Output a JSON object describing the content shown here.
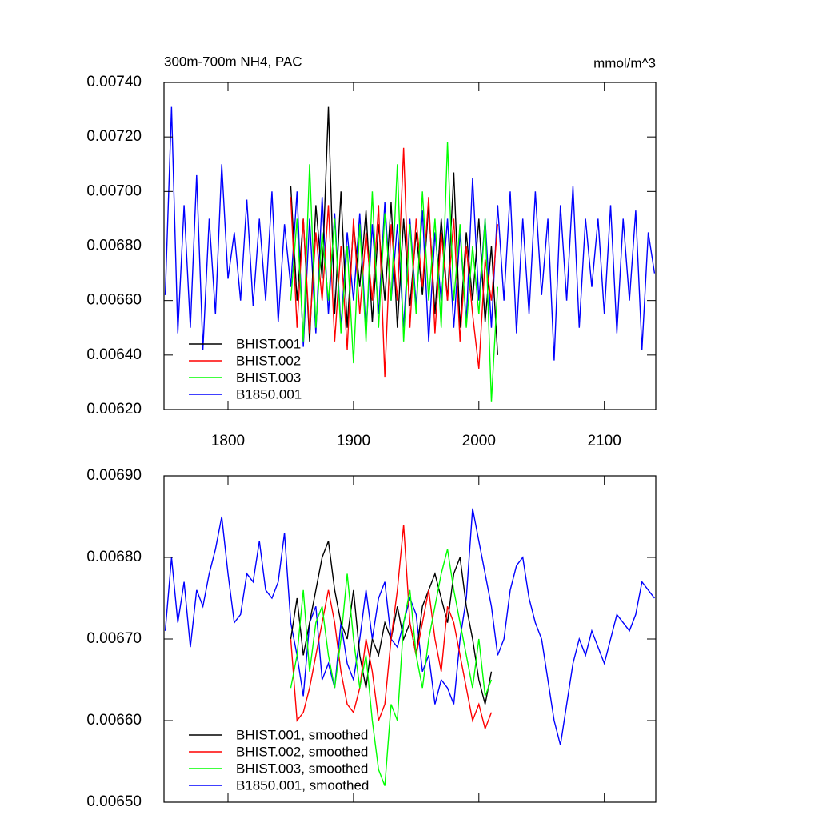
{
  "chart_data": [
    {
      "type": "line",
      "title": "300m-700m NH4, PAC",
      "units_label": "mmol/m^3",
      "xlim": [
        1749,
        2141
      ],
      "xticks": [
        1800,
        1900,
        2000,
        2100
      ],
      "ylim": [
        0.0062,
        0.0074
      ],
      "yticks": [
        {
          "value": 0.0062,
          "label": "0.00620"
        },
        {
          "value": 0.0064,
          "label": "0.00640"
        },
        {
          "value": 0.0066,
          "label": "0.00660"
        },
        {
          "value": 0.0068,
          "label": "0.00680"
        },
        {
          "value": 0.007,
          "label": "0.00700"
        },
        {
          "value": 0.0072,
          "label": "0.00720"
        },
        {
          "value": 0.0074,
          "label": "0.00740"
        }
      ],
      "legend": "lower left",
      "series": [
        {
          "name": "B1850.001",
          "color": "#0000ff",
          "x": [
            1750,
            1755,
            1760,
            1765,
            1770,
            1775,
            1780,
            1785,
            1790,
            1795,
            1800,
            1805,
            1810,
            1815,
            1820,
            1825,
            1830,
            1835,
            1840,
            1845,
            1850,
            1855,
            1860,
            1865,
            1870,
            1875,
            1880,
            1885,
            1890,
            1895,
            1900,
            1905,
            1910,
            1915,
            1920,
            1925,
            1930,
            1935,
            1940,
            1945,
            1950,
            1955,
            1960,
            1965,
            1970,
            1975,
            1980,
            1985,
            1990,
            1995,
            2000,
            2005,
            2010,
            2015,
            2020,
            2025,
            2030,
            2035,
            2040,
            2045,
            2050,
            2055,
            2060,
            2065,
            2070,
            2075,
            2080,
            2085,
            2090,
            2095,
            2100,
            2105,
            2110,
            2115,
            2120,
            2125,
            2130,
            2135,
            2140
          ],
          "values": [
            0.00662,
            0.00731,
            0.00648,
            0.00695,
            0.0065,
            0.00706,
            0.00642,
            0.0069,
            0.00655,
            0.0071,
            0.00668,
            0.00685,
            0.0066,
            0.00697,
            0.00658,
            0.0069,
            0.0066,
            0.007,
            0.00652,
            0.00688,
            0.00665,
            0.007,
            0.00643,
            0.0069,
            0.00648,
            0.00698,
            0.00655,
            0.00692,
            0.0065,
            0.00685,
            0.0066,
            0.00692,
            0.00648,
            0.00688,
            0.00655,
            0.00696,
            0.0066,
            0.00688,
            0.0065,
            0.0069,
            0.00658,
            0.00693,
            0.00645,
            0.00685,
            0.0066,
            0.0069,
            0.0065,
            0.00685,
            0.00652,
            0.00705,
            0.0066,
            0.0069,
            0.0065,
            0.00695,
            0.0066,
            0.007,
            0.00648,
            0.0069,
            0.00655,
            0.007,
            0.00662,
            0.0069,
            0.00638,
            0.00695,
            0.0066,
            0.00702,
            0.0065,
            0.0069,
            0.00665,
            0.0069,
            0.00655,
            0.00695,
            0.00648,
            0.0069,
            0.0066,
            0.00693,
            0.00642,
            0.00685,
            0.0067
          ]
        },
        {
          "name": "BHIST.001",
          "color": "#000000",
          "x": [
            1850,
            1855,
            1860,
            1865,
            1870,
            1875,
            1880,
            1885,
            1890,
            1895,
            1900,
            1905,
            1910,
            1915,
            1920,
            1925,
            1930,
            1935,
            1940,
            1945,
            1950,
            1955,
            1960,
            1965,
            1970,
            1975,
            1980,
            1985,
            1990,
            1995,
            2000,
            2005,
            2010,
            2015
          ],
          "values": [
            0.00702,
            0.0066,
            0.0069,
            0.00645,
            0.00695,
            0.00668,
            0.00731,
            0.00655,
            0.007,
            0.0065,
            0.00688,
            0.00665,
            0.00693,
            0.00652,
            0.00688,
            0.0066,
            0.00696,
            0.0065,
            0.0069,
            0.00658,
            0.00685,
            0.00662,
            0.00695,
            0.00655,
            0.0069,
            0.0066,
            0.00707,
            0.0065,
            0.00685,
            0.0066,
            0.0069,
            0.00652,
            0.0068,
            0.0064
          ]
        },
        {
          "name": "BHIST.002",
          "color": "#ff0000",
          "x": [
            1850,
            1855,
            1860,
            1865,
            1870,
            1875,
            1880,
            1885,
            1890,
            1895,
            1900,
            1905,
            1910,
            1915,
            1920,
            1925,
            1930,
            1935,
            1940,
            1945,
            1950,
            1955,
            1960,
            1965,
            1970,
            1975,
            1980,
            1985,
            1990,
            1995,
            2000,
            2005,
            2010,
            2015
          ],
          "values": [
            0.00698,
            0.0065,
            0.0069,
            0.00648,
            0.00685,
            0.0066,
            0.00695,
            0.00645,
            0.0068,
            0.00642,
            0.0069,
            0.00655,
            0.00685,
            0.0066,
            0.00695,
            0.00632,
            0.00688,
            0.0066,
            0.00716,
            0.0065,
            0.0069,
            0.00665,
            0.00698,
            0.00648,
            0.00685,
            0.0066,
            0.0069,
            0.00645,
            0.0068,
            0.00655,
            0.00635,
            0.00675,
            0.0066,
            0.00688
          ]
        },
        {
          "name": "BHIST.003",
          "color": "#00ff00",
          "x": [
            1850,
            1855,
            1860,
            1865,
            1870,
            1875,
            1880,
            1885,
            1890,
            1895,
            1900,
            1905,
            1910,
            1915,
            1920,
            1925,
            1930,
            1935,
            1940,
            1945,
            1950,
            1955,
            1960,
            1965,
            1970,
            1975,
            1980,
            1985,
            1990,
            1995,
            2000,
            2005,
            2010,
            2015
          ],
          "values": [
            0.0066,
            0.0069,
            0.00645,
            0.0071,
            0.0065,
            0.00685,
            0.0066,
            0.0069,
            0.00648,
            0.0068,
            0.00637,
            0.00688,
            0.00645,
            0.007,
            0.0065,
            0.00692,
            0.0066,
            0.0071,
            0.00645,
            0.00688,
            0.00655,
            0.007,
            0.0066,
            0.0069,
            0.0065,
            0.00718,
            0.0066,
            0.00688,
            0.0065,
            0.0068,
            0.00655,
            0.0069,
            0.00623,
            0.00665
          ]
        }
      ]
    },
    {
      "type": "line",
      "xlim": [
        1749,
        2141
      ],
      "xticks": [
        1800,
        1900,
        2000,
        2100
      ],
      "ylim": [
        0.0065,
        0.0069
      ],
      "yticks": [
        {
          "value": 0.0065,
          "label": "0.00650"
        },
        {
          "value": 0.0066,
          "label": "0.00660"
        },
        {
          "value": 0.0067,
          "label": "0.00670"
        },
        {
          "value": 0.0068,
          "label": "0.00680"
        },
        {
          "value": 0.0069,
          "label": "0.00690"
        }
      ],
      "legend": "lower left",
      "series": [
        {
          "name": "B1850.001, smoothed",
          "color": "#0000ff",
          "x": [
            1750,
            1755,
            1760,
            1765,
            1770,
            1775,
            1780,
            1785,
            1790,
            1795,
            1800,
            1805,
            1810,
            1815,
            1820,
            1825,
            1830,
            1835,
            1840,
            1845,
            1850,
            1855,
            1860,
            1865,
            1870,
            1875,
            1880,
            1885,
            1890,
            1895,
            1900,
            1905,
            1910,
            1915,
            1920,
            1925,
            1930,
            1935,
            1940,
            1945,
            1950,
            1955,
            1960,
            1965,
            1970,
            1975,
            1980,
            1985,
            1990,
            1995,
            2000,
            2005,
            2010,
            2015,
            2020,
            2025,
            2030,
            2035,
            2040,
            2045,
            2050,
            2055,
            2060,
            2065,
            2070,
            2075,
            2080,
            2085,
            2090,
            2095,
            2100,
            2105,
            2110,
            2115,
            2120,
            2125,
            2130,
            2135,
            2140
          ],
          "values": [
            0.00671,
            0.0068,
            0.00672,
            0.00677,
            0.00669,
            0.00676,
            0.00674,
            0.00678,
            0.00681,
            0.00685,
            0.00678,
            0.00672,
            0.00673,
            0.00678,
            0.00677,
            0.00682,
            0.00676,
            0.00675,
            0.00677,
            0.00683,
            0.00672,
            0.00668,
            0.00663,
            0.00672,
            0.00674,
            0.00665,
            0.00667,
            0.00664,
            0.00672,
            0.00667,
            0.00665,
            0.0067,
            0.00676,
            0.0067,
            0.00675,
            0.00677,
            0.0067,
            0.00669,
            0.00672,
            0.00675,
            0.00673,
            0.00666,
            0.00668,
            0.00662,
            0.00665,
            0.00664,
            0.00662,
            0.0067,
            0.00675,
            0.00686,
            0.00682,
            0.00678,
            0.00674,
            0.00668,
            0.0067,
            0.00676,
            0.00679,
            0.0068,
            0.00675,
            0.00672,
            0.0067,
            0.00665,
            0.0066,
            0.00657,
            0.00662,
            0.00667,
            0.0067,
            0.00668,
            0.00671,
            0.00669,
            0.00667,
            0.0067,
            0.00673,
            0.00672,
            0.00671,
            0.00673,
            0.00677,
            0.00676,
            0.00675
          ]
        },
        {
          "name": "BHIST.001, smoothed",
          "color": "#000000",
          "x": [
            1850,
            1855,
            1860,
            1865,
            1870,
            1875,
            1880,
            1885,
            1890,
            1895,
            1900,
            1905,
            1910,
            1915,
            1920,
            1925,
            1930,
            1935,
            1940,
            1945,
            1950,
            1955,
            1960,
            1965,
            1970,
            1975,
            1980,
            1985,
            1990,
            1995,
            2000,
            2005,
            2010
          ],
          "values": [
            0.0067,
            0.00675,
            0.00668,
            0.00672,
            0.00676,
            0.0068,
            0.00682,
            0.00676,
            0.00672,
            0.0067,
            0.00676,
            0.00668,
            0.00664,
            0.0067,
            0.00668,
            0.00672,
            0.0067,
            0.00674,
            0.0067,
            0.00672,
            0.00668,
            0.00674,
            0.00676,
            0.00678,
            0.00675,
            0.00672,
            0.00678,
            0.0068,
            0.00674,
            0.0067,
            0.00665,
            0.00662,
            0.00666
          ]
        },
        {
          "name": "BHIST.002, smoothed",
          "color": "#ff0000",
          "x": [
            1850,
            1855,
            1860,
            1865,
            1870,
            1875,
            1880,
            1885,
            1890,
            1895,
            1900,
            1905,
            1910,
            1915,
            1920,
            1925,
            1930,
            1935,
            1940,
            1945,
            1950,
            1955,
            1960,
            1965,
            1970,
            1975,
            1980,
            1985,
            1990,
            1995,
            2000,
            2005,
            2010
          ],
          "values": [
            0.0067,
            0.0066,
            0.00661,
            0.00664,
            0.00668,
            0.00672,
            0.00676,
            0.00672,
            0.00666,
            0.00662,
            0.00661,
            0.00664,
            0.0067,
            0.00666,
            0.0066,
            0.00662,
            0.0067,
            0.00676,
            0.00684,
            0.00672,
            0.00668,
            0.00672,
            0.00676,
            0.0067,
            0.00666,
            0.00674,
            0.00672,
            0.00668,
            0.00664,
            0.0066,
            0.00662,
            0.00659,
            0.00661
          ]
        },
        {
          "name": "BHIST.003, smoothed",
          "color": "#00ff00",
          "x": [
            1850,
            1855,
            1860,
            1865,
            1870,
            1875,
            1880,
            1885,
            1890,
            1895,
            1900,
            1905,
            1910,
            1915,
            1920,
            1925,
            1930,
            1935,
            1940,
            1945,
            1950,
            1955,
            1960,
            1965,
            1970,
            1975,
            1980,
            1985,
            1990,
            1995,
            2000,
            2005,
            2010
          ],
          "values": [
            0.00664,
            0.00668,
            0.00676,
            0.00666,
            0.00672,
            0.00674,
            0.00668,
            0.00664,
            0.0067,
            0.00678,
            0.0067,
            0.00664,
            0.00668,
            0.0066,
            0.00654,
            0.00652,
            0.00662,
            0.0066,
            0.00672,
            0.00676,
            0.00668,
            0.00664,
            0.0067,
            0.00674,
            0.00678,
            0.00681,
            0.00676,
            0.00672,
            0.00668,
            0.00664,
            0.0067,
            0.00663,
            0.00665
          ]
        }
      ]
    }
  ]
}
